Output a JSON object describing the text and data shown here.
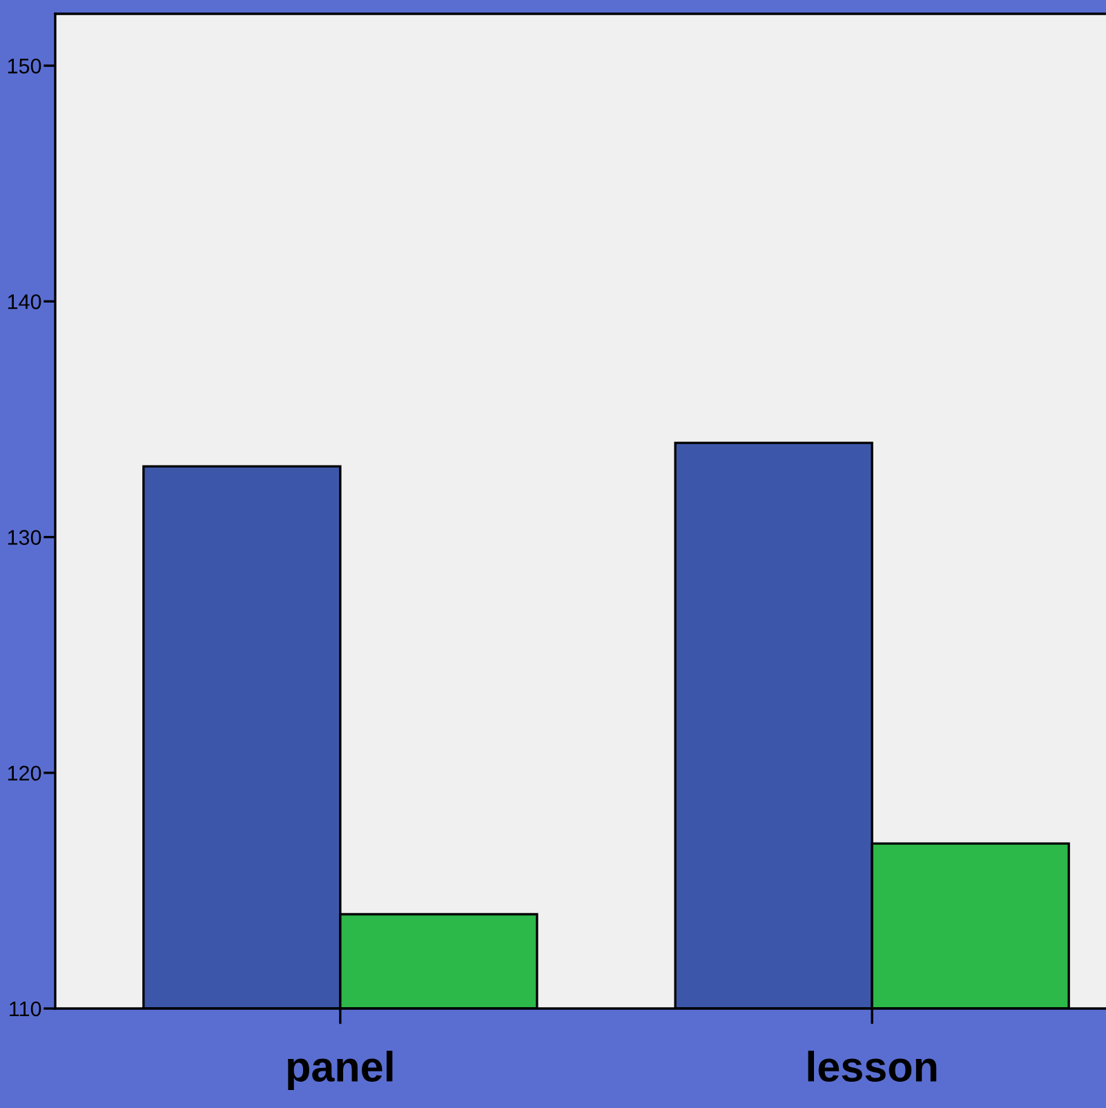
{
  "chart_data": {
    "type": "bar",
    "categories": [
      "panel",
      "lesson"
    ],
    "series": [
      {
        "color": "#3c57a9",
        "values": [
          133,
          134
        ]
      },
      {
        "color": "#2db84a",
        "values": [
          114,
          117
        ]
      }
    ],
    "ylim": [
      110,
      152.2
    ],
    "yticks": [
      110,
      120,
      130,
      140,
      150
    ]
  }
}
